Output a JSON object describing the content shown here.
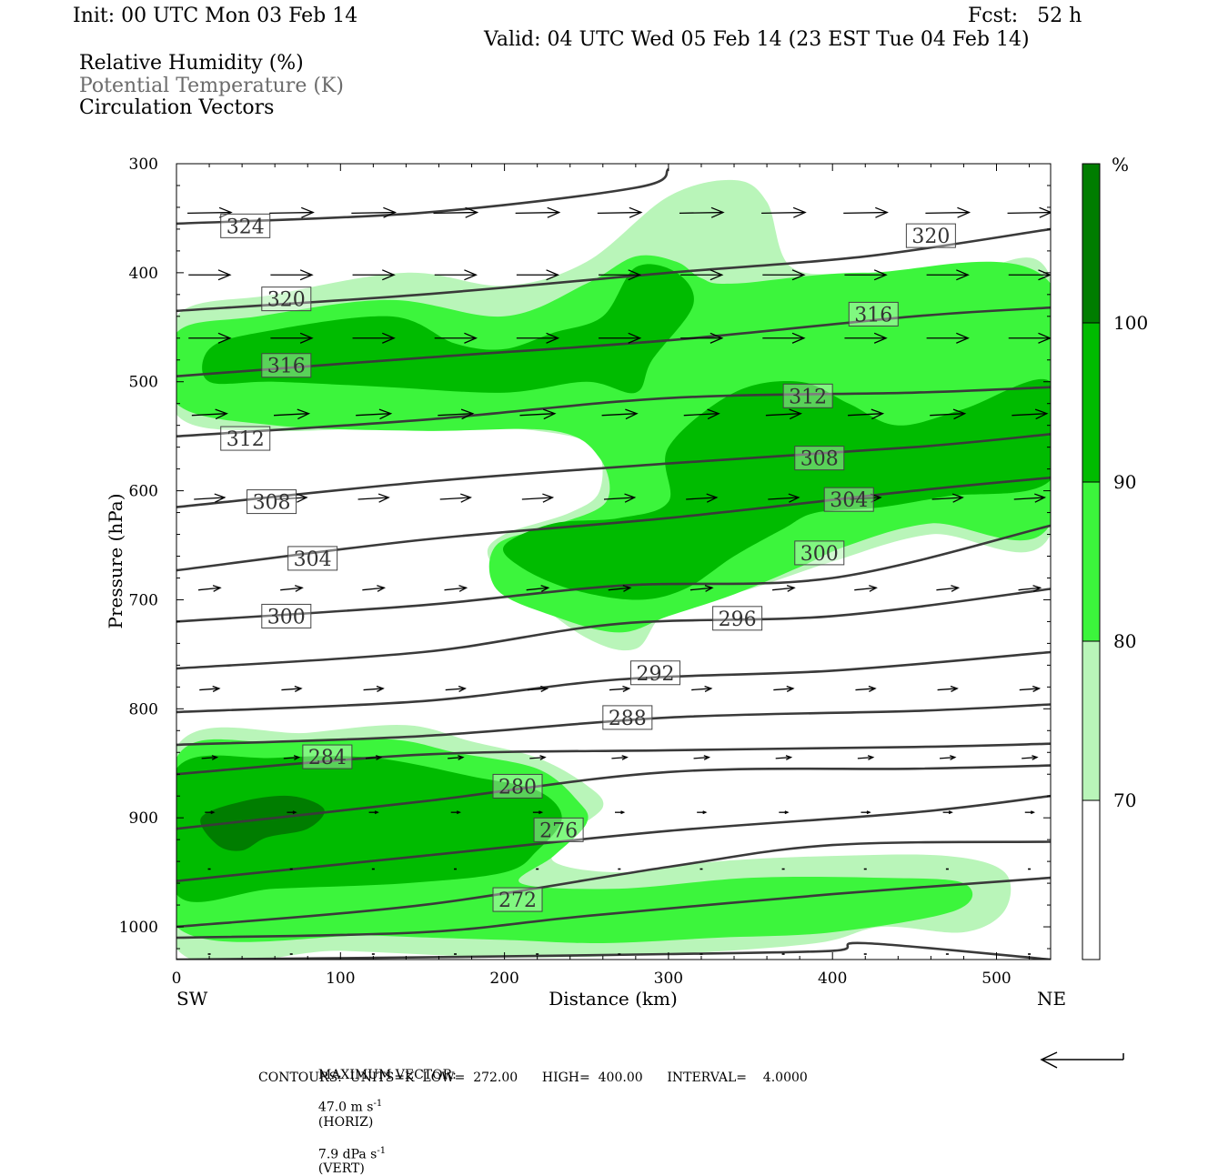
{
  "header": {
    "init": "Init: 00 UTC Mon 03 Feb 14",
    "fcst": "Fcst:   52 h",
    "valid": "Valid: 04 UTC Wed 05 Feb 14 (23 EST Tue 04 Feb 14)",
    "fields": [
      "Relative Humidity (%)",
      "Potential Temperature (K)",
      "Circulation Vectors"
    ]
  },
  "footer": {
    "max_vector_label": "MAXIMUM VECTOR:",
    "max_vector_horiz": "47.0 m s",
    "horiz_tag": "(HORIZ)",
    "max_vector_vert": "7.9 dPa s",
    "vert_tag": "(VERT)",
    "exp": "-1",
    "contours": "CONTOURS:  UNITS=K  LOW=  272.00      HIGH=  400.00      INTERVAL=    4.0000"
  },
  "colors": {
    "rh_70_80": "#b9f5b9",
    "rh_80_90": "#3cf53c",
    "rh_90_100": "#00bb00",
    "rh_100": "#007d00",
    "contour": "#3a3a3a"
  },
  "chart_data": {
    "type": "cross-section",
    "xlabel": "Distance (km)",
    "ylabel": "Pressure (hPa)",
    "xlim": [
      0,
      533
    ],
    "ylim": [
      1030,
      300
    ],
    "x_ticks": [
      0,
      100,
      200,
      300,
      400,
      500
    ],
    "y_ticks": [
      300,
      400,
      500,
      600,
      700,
      800,
      900,
      1000
    ],
    "left_end_label": "SW",
    "right_end_label": "NE",
    "colorbar": {
      "unit": "%",
      "levels": [
        70,
        80,
        90,
        100
      ],
      "labels": [
        "70",
        "80",
        "90",
        "100"
      ]
    },
    "rh_regions": [
      {
        "level": "70",
        "pts": [
          [
            0,
            440
          ],
          [
            60,
            420
          ],
          [
            140,
            400
          ],
          [
            200,
            412
          ],
          [
            250,
            390
          ],
          [
            300,
            330
          ],
          [
            340,
            315
          ],
          [
            360,
            335
          ],
          [
            375,
            395
          ],
          [
            420,
            400
          ],
          [
            480,
            400
          ],
          [
            533,
            405
          ],
          [
            533,
            640
          ],
          [
            460,
            640
          ],
          [
            400,
            665
          ],
          [
            350,
            690
          ],
          [
            300,
            710
          ],
          [
            280,
            745
          ],
          [
            250,
            735
          ],
          [
            210,
            690
          ],
          [
            190,
            660
          ],
          [
            200,
            640
          ],
          [
            240,
            620
          ],
          [
            258,
            600
          ],
          [
            255,
            560
          ],
          [
            220,
            545
          ],
          [
            150,
            540
          ],
          [
            60,
            545
          ],
          [
            0,
            530
          ]
        ]
      },
      {
        "level": "70",
        "pts": [
          [
            0,
            835
          ],
          [
            80,
            822
          ],
          [
            140,
            815
          ],
          [
            180,
            830
          ],
          [
            220,
            845
          ],
          [
            250,
            870
          ],
          [
            260,
            890
          ],
          [
            240,
            915
          ],
          [
            230,
            940
          ],
          [
            270,
            950
          ],
          [
            330,
            940
          ],
          [
            400,
            935
          ],
          [
            470,
            935
          ],
          [
            505,
            950
          ],
          [
            505,
            985
          ],
          [
            480,
            1005
          ],
          [
            430,
            1000
          ],
          [
            390,
            1015
          ],
          [
            300,
            1025
          ],
          [
            200,
            1028
          ],
          [
            100,
            1022
          ],
          [
            0,
            1020
          ]
        ]
      },
      {
        "level": "80",
        "pts": [
          [
            0,
            455
          ],
          [
            50,
            440
          ],
          [
            130,
            425
          ],
          [
            200,
            440
          ],
          [
            250,
            410
          ],
          [
            280,
            385
          ],
          [
            305,
            390
          ],
          [
            320,
            405
          ],
          [
            340,
            410
          ],
          [
            420,
            400
          ],
          [
            533,
            410
          ],
          [
            533,
            630
          ],
          [
            460,
            630
          ],
          [
            410,
            650
          ],
          [
            380,
            670
          ],
          [
            340,
            695
          ],
          [
            300,
            715
          ],
          [
            270,
            730
          ],
          [
            230,
            715
          ],
          [
            195,
            690
          ],
          [
            195,
            650
          ],
          [
            230,
            632
          ],
          [
            262,
            610
          ],
          [
            258,
            570
          ],
          [
            230,
            545
          ],
          [
            150,
            545
          ],
          [
            60,
            540
          ],
          [
            0,
            520
          ]
        ]
      },
      {
        "level": "80",
        "pts": [
          [
            0,
            845
          ],
          [
            60,
            830
          ],
          [
            130,
            828
          ],
          [
            170,
            840
          ],
          [
            220,
            855
          ],
          [
            245,
            885
          ],
          [
            250,
            905
          ],
          [
            230,
            935
          ],
          [
            210,
            960
          ],
          [
            270,
            965
          ],
          [
            350,
            955
          ],
          [
            430,
            955
          ],
          [
            480,
            960
          ],
          [
            475,
            985
          ],
          [
            400,
            1005
          ],
          [
            330,
            1010
          ],
          [
            260,
            1015
          ],
          [
            200,
            1012
          ],
          [
            120,
            1008
          ],
          [
            0,
            1000
          ]
        ]
      },
      {
        "level": "90",
        "pts": [
          [
            20,
            470
          ],
          [
            50,
            455
          ],
          [
            130,
            440
          ],
          [
            170,
            465
          ],
          [
            200,
            470
          ],
          [
            230,
            455
          ],
          [
            260,
            440
          ],
          [
            280,
            395
          ],
          [
            305,
            400
          ],
          [
            315,
            430
          ],
          [
            290,
            480
          ],
          [
            280,
            510
          ],
          [
            250,
            500
          ],
          [
            200,
            510
          ],
          [
            130,
            505
          ],
          [
            60,
            500
          ],
          [
            20,
            500
          ]
        ]
      },
      {
        "level": "90",
        "pts": [
          [
            300,
            560
          ],
          [
            340,
            510
          ],
          [
            380,
            500
          ],
          [
            410,
            520
          ],
          [
            440,
            540
          ],
          [
            480,
            525
          ],
          [
            533,
            500
          ],
          [
            533,
            590
          ],
          [
            470,
            605
          ],
          [
            430,
            615
          ],
          [
            390,
            620
          ],
          [
            370,
            635
          ],
          [
            340,
            660
          ],
          [
            310,
            690
          ],
          [
            280,
            700
          ],
          [
            240,
            690
          ],
          [
            210,
            670
          ],
          [
            200,
            650
          ],
          [
            230,
            630
          ],
          [
            270,
            625
          ],
          [
            300,
            610
          ]
        ]
      },
      {
        "level": "90",
        "pts": [
          [
            0,
            855
          ],
          [
            60,
            845
          ],
          [
            120,
            845
          ],
          [
            180,
            862
          ],
          [
            220,
            875
          ],
          [
            235,
            900
          ],
          [
            220,
            930
          ],
          [
            200,
            950
          ],
          [
            140,
            960
          ],
          [
            60,
            965
          ],
          [
            0,
            970
          ]
        ]
      },
      {
        "level": "100",
        "pts": [
          [
            15,
            900
          ],
          [
            40,
            885
          ],
          [
            70,
            880
          ],
          [
            90,
            892
          ],
          [
            80,
            910
          ],
          [
            55,
            918
          ],
          [
            40,
            930
          ],
          [
            25,
            925
          ]
        ]
      }
    ],
    "theta_contours": [
      {
        "label": "324",
        "pts": [
          [
            0,
            355
          ],
          [
            150,
            345
          ],
          [
            280,
            322
          ],
          [
            300,
            305
          ]
        ]
      },
      {
        "label": "320",
        "pts": [
          [
            0,
            435
          ],
          [
            150,
            420
          ],
          [
            300,
            400
          ],
          [
            420,
            385
          ],
          [
            533,
            360
          ]
        ]
      },
      {
        "label": "316",
        "pts": [
          [
            0,
            495
          ],
          [
            150,
            478
          ],
          [
            300,
            462
          ],
          [
            450,
            440
          ],
          [
            533,
            432
          ]
        ]
      },
      {
        "label": "312",
        "pts": [
          [
            0,
            550
          ],
          [
            150,
            535
          ],
          [
            300,
            515
          ],
          [
            450,
            510
          ],
          [
            533,
            505
          ]
        ]
      },
      {
        "label": "308",
        "pts": [
          [
            0,
            615
          ],
          [
            150,
            592
          ],
          [
            300,
            575
          ],
          [
            450,
            560
          ],
          [
            533,
            548
          ]
        ]
      },
      {
        "label": "304",
        "pts": [
          [
            0,
            673
          ],
          [
            150,
            645
          ],
          [
            300,
            625
          ],
          [
            450,
            600
          ],
          [
            533,
            588
          ]
        ]
      },
      {
        "label": "300",
        "pts": [
          [
            0,
            720
          ],
          [
            150,
            705
          ],
          [
            270,
            687
          ],
          [
            400,
            680
          ],
          [
            533,
            632
          ]
        ]
      },
      {
        "label": "296",
        "pts": [
          [
            0,
            763
          ],
          [
            150,
            748
          ],
          [
            270,
            722
          ],
          [
            400,
            715
          ],
          [
            533,
            690
          ]
        ]
      },
      {
        "label": "292",
        "pts": [
          [
            0,
            803
          ],
          [
            150,
            793
          ],
          [
            270,
            773
          ],
          [
            400,
            765
          ],
          [
            533,
            748
          ]
        ]
      },
      {
        "label": "288",
        "pts": [
          [
            0,
            833
          ],
          [
            150,
            825
          ],
          [
            300,
            808
          ],
          [
            450,
            802
          ],
          [
            533,
            796
          ]
        ]
      },
      {
        "label": "284",
        "pts": [
          [
            0,
            860
          ],
          [
            150,
            842
          ],
          [
            300,
            838
          ],
          [
            450,
            835
          ],
          [
            533,
            832
          ]
        ]
      },
      {
        "label": "280",
        "pts": [
          [
            0,
            910
          ],
          [
            150,
            885
          ],
          [
            300,
            858
          ],
          [
            450,
            855
          ],
          [
            533,
            852
          ]
        ]
      },
      {
        "label": "276",
        "pts": [
          [
            0,
            958
          ],
          [
            150,
            935
          ],
          [
            300,
            912
          ],
          [
            450,
            895
          ],
          [
            533,
            880
          ]
        ]
      },
      {
        "label": "272",
        "pts": [
          [
            0,
            1000
          ],
          [
            150,
            980
          ],
          [
            300,
            945
          ],
          [
            400,
            925
          ],
          [
            533,
            922
          ]
        ]
      },
      {
        "label": "",
        "pts": [
          [
            0,
            1010
          ],
          [
            150,
            1005
          ],
          [
            250,
            990
          ],
          [
            400,
            970
          ],
          [
            533,
            955
          ]
        ]
      },
      {
        "label": "",
        "pts": [
          [
            0,
            1030
          ],
          [
            150,
            1028
          ],
          [
            300,
            1025
          ],
          [
            400,
            1022
          ],
          [
            420,
            1015
          ],
          [
            533,
            1030
          ]
        ]
      }
    ],
    "theta_labels": [
      {
        "text": "324",
        "x": 42,
        "p": 357
      },
      {
        "text": "320",
        "x": 460,
        "p": 366
      },
      {
        "text": "320",
        "x": 67,
        "p": 424
      },
      {
        "text": "316",
        "x": 425,
        "p": 438
      },
      {
        "text": "316",
        "x": 67,
        "p": 485
      },
      {
        "text": "312",
        "x": 385,
        "p": 513
      },
      {
        "text": "312",
        "x": 42,
        "p": 552
      },
      {
        "text": "308",
        "x": 392,
        "p": 570
      },
      {
        "text": "308",
        "x": 58,
        "p": 610
      },
      {
        "text": "304",
        "x": 410,
        "p": 608
      },
      {
        "text": "304",
        "x": 83,
        "p": 662
      },
      {
        "text": "300",
        "x": 392,
        "p": 657
      },
      {
        "text": "300",
        "x": 67,
        "p": 715
      },
      {
        "text": "296",
        "x": 342,
        "p": 717
      },
      {
        "text": "292",
        "x": 292,
        "p": 767
      },
      {
        "text": "288",
        "x": 275,
        "p": 808
      },
      {
        "text": "284",
        "x": 92,
        "p": 844
      },
      {
        "text": "280",
        "x": 208,
        "p": 871
      },
      {
        "text": "276",
        "x": 233,
        "p": 911
      },
      {
        "text": "272",
        "x": 208,
        "p": 975
      }
    ],
    "vectors": [
      {
        "p": 345,
        "u": 1.0,
        "w": 0.02
      },
      {
        "p": 402,
        "u": 0.95,
        "w": 0.0
      },
      {
        "p": 460,
        "u": 0.95,
        "w": 0.0
      },
      {
        "p": 530,
        "u": 0.8,
        "w": 0.05
      },
      {
        "p": 607,
        "u": 0.7,
        "w": 0.05
      },
      {
        "p": 690,
        "u": 0.5,
        "w": 0.06
      },
      {
        "p": 782,
        "u": 0.45,
        "w": 0.04
      },
      {
        "p": 845,
        "u": 0.35,
        "w": 0.03
      },
      {
        "p": 895,
        "u": 0.2,
        "w": 0.0
      },
      {
        "p": 947,
        "u": 0.05,
        "w": 0.0
      },
      {
        "p": 1025,
        "u": 0.05,
        "w": 0.0
      }
    ],
    "vector_columns": [
      20,
      70,
      120,
      170,
      220,
      270,
      320,
      370,
      420,
      470,
      520
    ]
  }
}
